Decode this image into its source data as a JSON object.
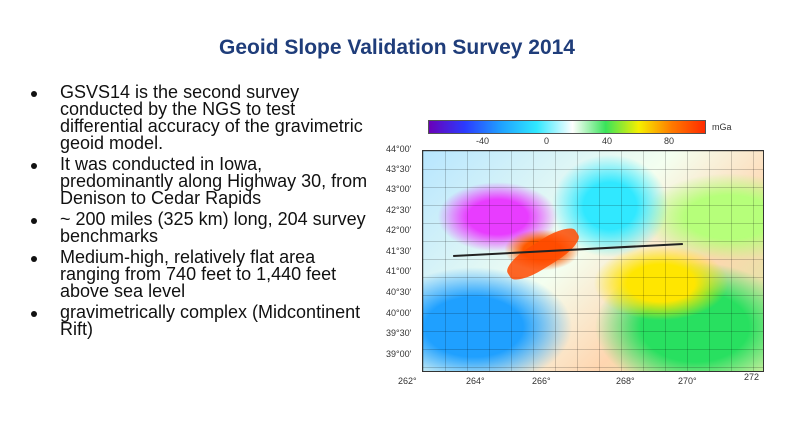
{
  "slide": {
    "title": "Geoid Slope Validation Survey 2014",
    "bullets": [
      "GSVS14 is the second survey conducted by the NGS to test differential accuracy of the gravimetric geoid model.",
      "It was conducted in Iowa, predominantly along Highway 30, from Denison to Cedar Rapids",
      "~ 200 miles (325 km) long, 204 survey benchmarks",
      "Medium-high, relatively flat area ranging from 740 feet to 1,440 feet above sea level",
      "gravimetrically complex (Midcontinent Rift)"
    ]
  },
  "figure": {
    "colorbar_ticks": [
      "-40",
      "0",
      "40",
      "80"
    ],
    "unit": "mGa",
    "lat_labels": [
      "44°00'",
      "43°30'",
      "43°00'",
      "42°30'",
      "42°00'",
      "41°30'",
      "41°00'",
      "40°30'",
      "40°00'",
      "39°30'",
      "39°00'"
    ],
    "lon_labels": [
      "262°",
      "264°",
      "266°",
      "268°",
      "270°",
      "272"
    ]
  },
  "colors": {
    "title": "#1f3d7a",
    "text": "#111111"
  }
}
